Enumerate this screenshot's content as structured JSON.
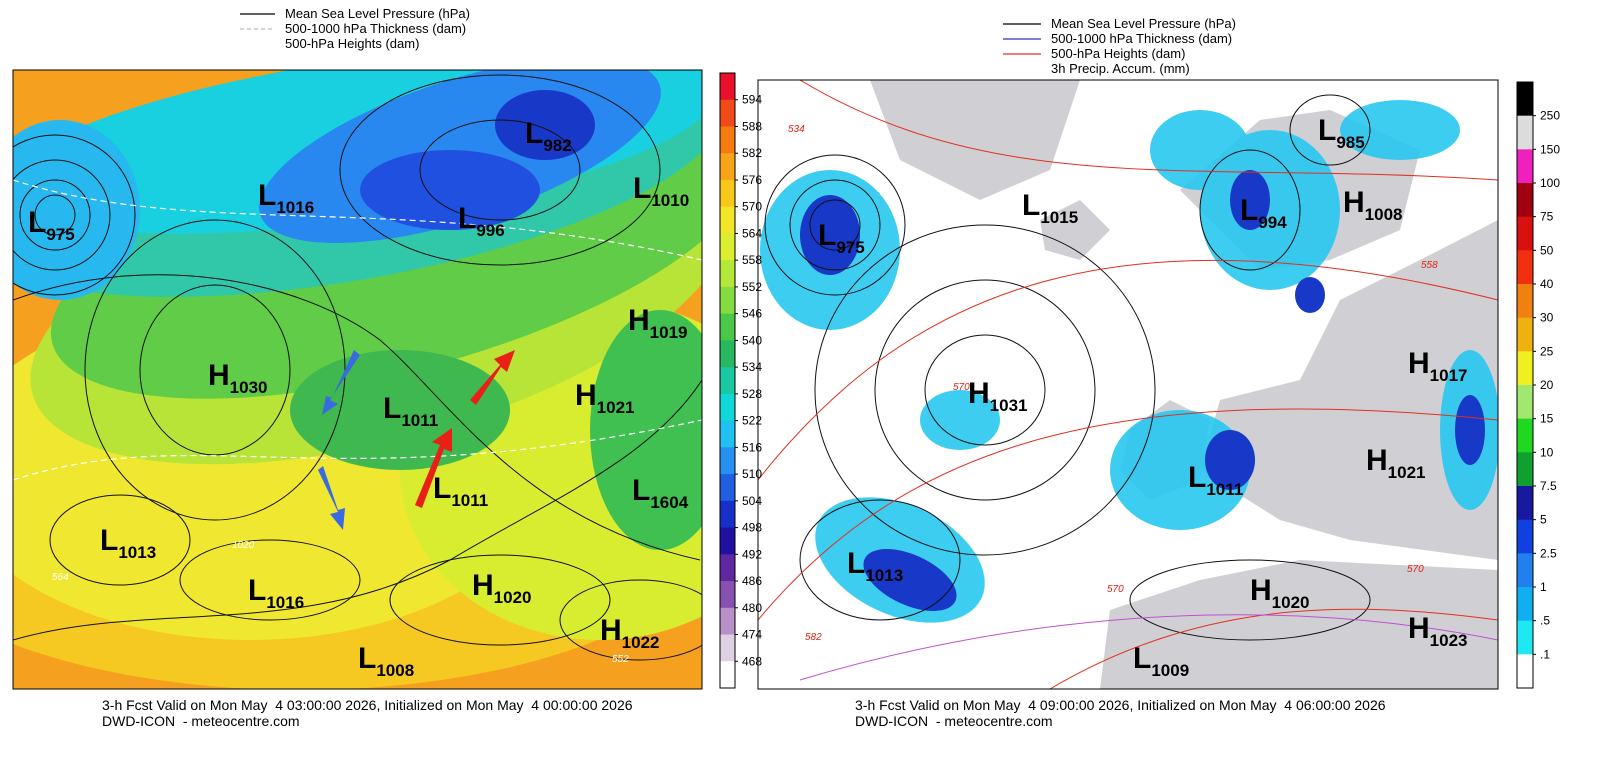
{
  "panels": [
    {
      "legend": [
        "Mean Sea Level Pressure (hPa)",
        "500-1000 hPa Thickness (dam)",
        "500-hPa Heights (dam)"
      ],
      "legend_colors": [
        "#000000",
        "#bbbbbb",
        "#ffffff"
      ],
      "colorbar": {
        "ticks": [
          594,
          588,
          582,
          576,
          570,
          564,
          558,
          552,
          546,
          540,
          534,
          528,
          522,
          516,
          510,
          504,
          498,
          492,
          486,
          480,
          474,
          468
        ],
        "colors": [
          "#e8102a",
          "#f04a18",
          "#f57a10",
          "#f8a418",
          "#f8c818",
          "#f2e628",
          "#dcee30",
          "#b4e838",
          "#84dc40",
          "#4cc848",
          "#28b860",
          "#18c8a0",
          "#10d8d8",
          "#20c0f0",
          "#2890f0",
          "#2060e0",
          "#1830c8",
          "#2010a0",
          "#6028a0",
          "#8850b0",
          "#b890c8",
          "#e0d0e4",
          "#ffffff"
        ]
      },
      "pressure_labels": [
        {
          "letter": "L",
          "value": "975"
        },
        {
          "letter": "L",
          "value": "1016"
        },
        {
          "letter": "L",
          "value": "996"
        },
        {
          "letter": "L",
          "value": "982"
        },
        {
          "letter": "L",
          "value": "1010"
        },
        {
          "letter": "H",
          "value": "1019"
        },
        {
          "letter": "H",
          "value": "1030"
        },
        {
          "letter": "L",
          "value": "1011"
        },
        {
          "letter": "H",
          "value": "1021"
        },
        {
          "letter": "L",
          "value": "1011"
        },
        {
          "letter": "L",
          "value": "1604"
        },
        {
          "letter": "L",
          "value": "1013"
        },
        {
          "letter": "L",
          "value": "1016"
        },
        {
          "letter": "H",
          "value": "1020"
        },
        {
          "letter": "H",
          "value": "1022"
        },
        {
          "letter": "L",
          "value": "1008"
        }
      ],
      "contour_labels": [
        "1020",
        "564",
        "552"
      ],
      "footer": [
        "3-h Fcst Valid on Mon May  4 03:00:00 2026, Initialized on Mon May  4 00:00:00 2026",
        "DWD-ICON  - meteocentre.com"
      ]
    },
    {
      "legend": [
        "Mean Sea Level Pressure (hPa)",
        "500-1000 hPa Thickness (dam)",
        "500-hPa Heights (dam)",
        "3h Precip. Accum. (mm)"
      ],
      "legend_colors": [
        "#000000",
        "#3030c0",
        "#e03020",
        "#ffffff"
      ],
      "colorbar": {
        "ticks": [
          250,
          150,
          100,
          75,
          50,
          40,
          30,
          25,
          20,
          15,
          10,
          7.5,
          5,
          2.5,
          1,
          {
            "value": 0.5,
            "label": ".5"
          },
          {
            "value": 0.1,
            "label": ".1"
          }
        ],
        "colors": [
          "#000000",
          "#dcdcdc",
          "#f020c0",
          "#a00010",
          "#d81010",
          "#f03010",
          "#f08010",
          "#f0b010",
          "#f0f020",
          "#a0e870",
          "#20d820",
          "#10a030",
          "#1818a0",
          "#1040e0",
          "#2080f0",
          "#10b0f0",
          "#20e8f0",
          "#ffffff"
        ]
      },
      "pressure_labels": [
        {
          "letter": "L",
          "value": "985"
        },
        {
          "letter": "L",
          "value": "975"
        },
        {
          "letter": "L",
          "value": "1015"
        },
        {
          "letter": "L",
          "value": "994"
        },
        {
          "letter": "H",
          "value": "1008"
        },
        {
          "letter": "H",
          "value": "1031"
        },
        {
          "letter": "H",
          "value": "1017"
        },
        {
          "letter": "L",
          "value": "1011"
        },
        {
          "letter": "H",
          "value": "1021"
        },
        {
          "letter": "L",
          "value": "1013"
        },
        {
          "letter": "H",
          "value": "1020"
        },
        {
          "letter": "H",
          "value": "1023"
        },
        {
          "letter": "L",
          "value": "1009"
        }
      ],
      "contour_labels": [
        "570",
        "570",
        "558",
        "534",
        "582",
        "570"
      ],
      "footer": [
        "3-h Fcst Valid on Mon May  4 09:00:00 2026, Initialized on Mon May  4 06:00:00 2026",
        "DWD-ICON  - meteocentre.com"
      ]
    }
  ]
}
